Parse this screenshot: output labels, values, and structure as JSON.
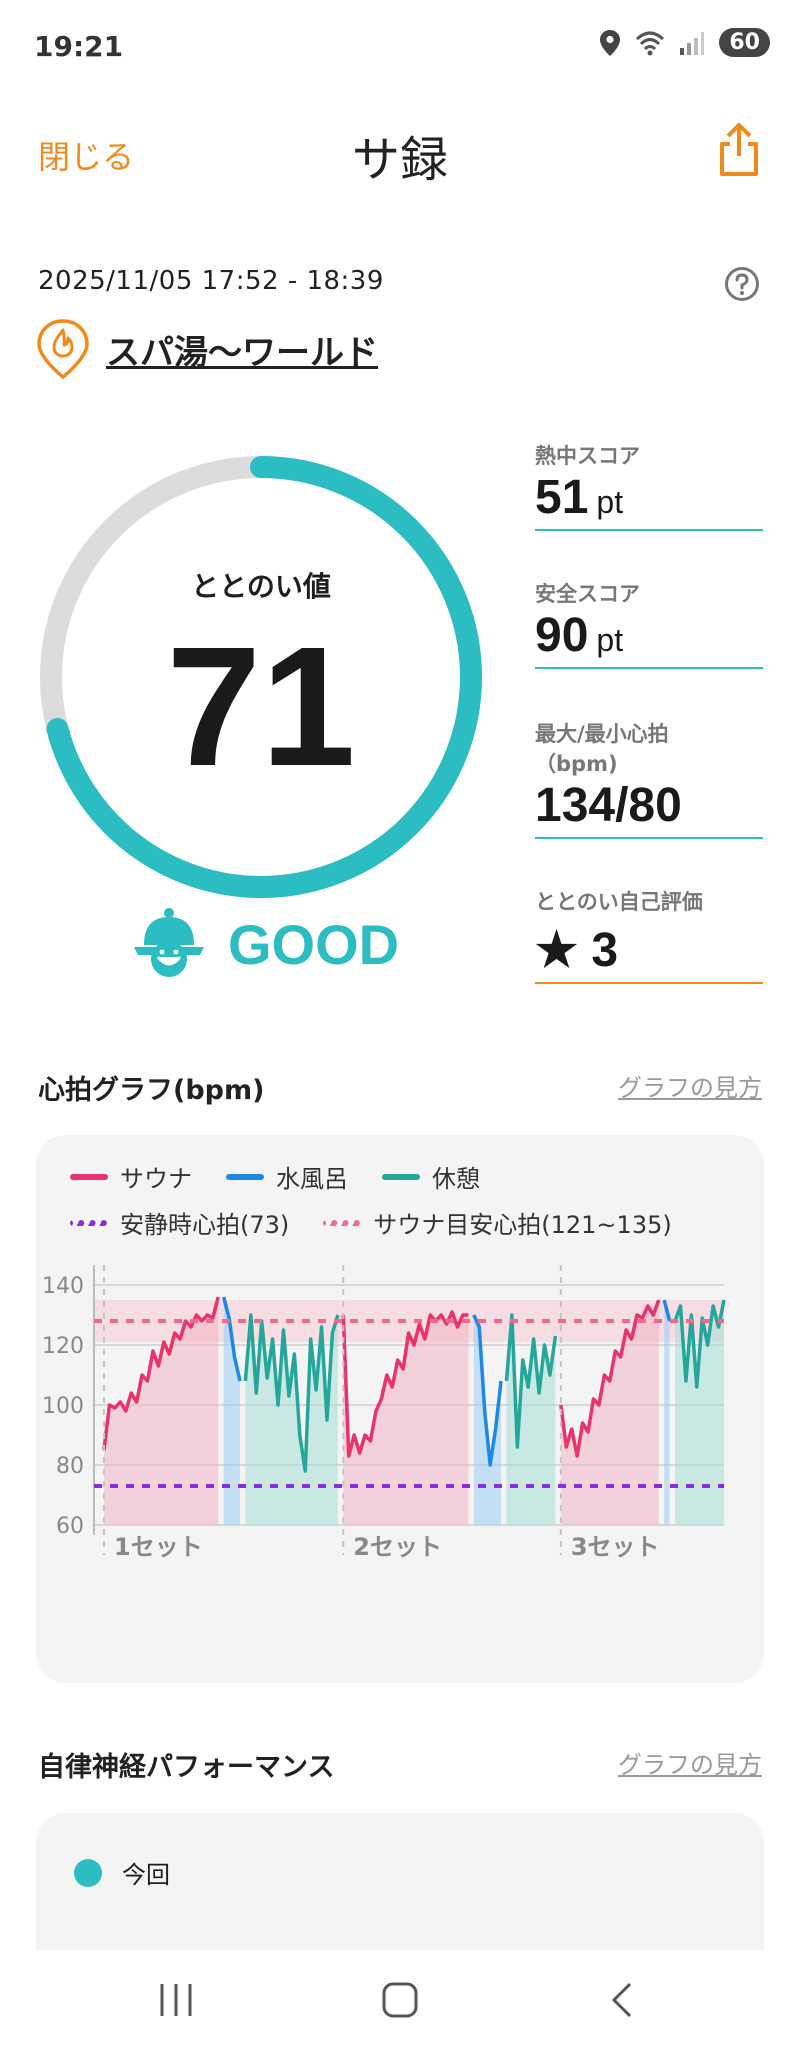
{
  "status": {
    "time": "19:21",
    "battery": "60"
  },
  "header": {
    "close_label": "閉じる",
    "title": "サ録"
  },
  "session": {
    "datetime": "2025/11/05 17:52 - 18:39",
    "facility": "スパ湯〜ワールド"
  },
  "gauge": {
    "label": "ととのい値",
    "value": "71",
    "percent": 71,
    "grade": "GOOD"
  },
  "scores": {
    "heat": {
      "label": "熱中スコア",
      "value": "51",
      "unit": "pt"
    },
    "safety": {
      "label": "安全スコア",
      "value": "90",
      "unit": "pt"
    },
    "hr": {
      "label1": "最大/最小心拍",
      "label2": "（bpm)",
      "value": "134/80"
    },
    "self": {
      "label": "ととのい自己評価",
      "value": "★ 3"
    }
  },
  "hr_section": {
    "title": "心拍グラフ(bpm)",
    "link": "グラフの見方"
  },
  "ans_section": {
    "title": "自律神経パフォーマンス",
    "link": "グラフの見方",
    "legend": "今回"
  },
  "colors": {
    "accent": "#2cbdc2",
    "sauna": "#e8336d",
    "cold": "#1e88e5",
    "rest": "#26a69a",
    "resting": "#8a2be2",
    "target": "#f06a8c",
    "orange": "#f08a1c"
  },
  "chart_data": {
    "type": "line",
    "legend": [
      {
        "name": "サウナ",
        "color": "#e8336d",
        "style": "solid"
      },
      {
        "name": "水風呂",
        "color": "#1e88e5",
        "style": "solid"
      },
      {
        "name": "休憩",
        "color": "#26a69a",
        "style": "solid"
      },
      {
        "name": "安静時心拍(73)",
        "color": "#8a2be2",
        "style": "dotted"
      },
      {
        "name": "サウナ目安心拍(121~135)",
        "color": "#f06a8c",
        "style": "dotted"
      }
    ],
    "ylim": [
      60,
      140
    ],
    "yticks": [
      60,
      80,
      100,
      120,
      140
    ],
    "resting_hr": 73,
    "target_band": [
      121,
      135
    ],
    "set_labels": [
      "1セット",
      "2セット",
      "3セット"
    ],
    "segments": [
      {
        "phase": "sauna",
        "values": [
          85,
          100,
          99,
          101,
          98,
          104,
          101,
          110,
          108,
          118,
          113,
          121,
          117,
          124,
          122,
          128,
          126,
          130,
          128,
          130,
          129,
          136
        ]
      },
      {
        "phase": "cold",
        "values": [
          136,
          129,
          116,
          108
        ]
      },
      {
        "phase": "rest",
        "values": [
          108,
          130,
          104,
          128,
          109,
          122,
          100,
          125,
          103,
          117,
          90,
          78,
          122,
          105,
          126,
          95,
          124,
          130
        ]
      },
      {
        "phase": "sauna",
        "values": [
          130,
          83,
          90,
          84,
          90,
          88,
          98,
          102,
          110,
          106,
          115,
          112,
          124,
          120,
          127,
          122,
          130,
          128,
          130,
          127,
          131,
          126,
          130,
          130
        ]
      },
      {
        "phase": "cold",
        "values": [
          130,
          126,
          98,
          80,
          92,
          108
        ]
      },
      {
        "phase": "rest",
        "values": [
          108,
          130,
          86,
          115,
          106,
          122,
          104,
          120,
          110,
          123
        ]
      },
      {
        "phase": "sauna",
        "values": [
          100,
          86,
          92,
          83,
          94,
          91,
          102,
          100,
          110,
          108,
          118,
          116,
          125,
          122,
          130,
          129,
          133,
          130,
          135
        ]
      },
      {
        "phase": "cold",
        "values": [
          135,
          128
        ]
      },
      {
        "phase": "rest",
        "values": [
          128,
          133,
          108,
          130,
          106,
          129,
          120,
          133,
          126,
          135
        ]
      }
    ]
  }
}
